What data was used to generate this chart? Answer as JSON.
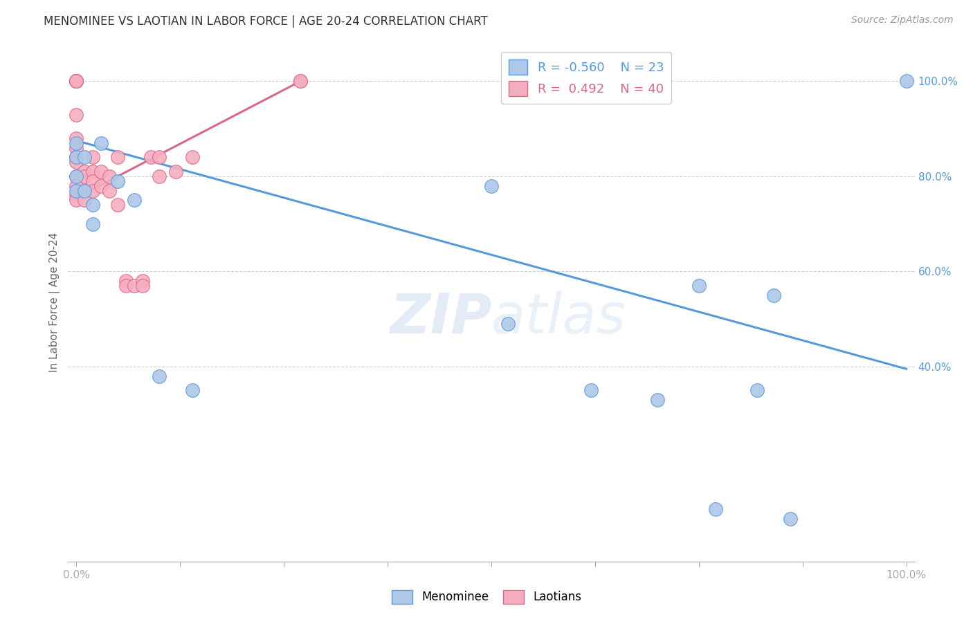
{
  "title": "MENOMINEE VS LAOTIAN IN LABOR FORCE | AGE 20-24 CORRELATION CHART",
  "source": "Source: ZipAtlas.com",
  "ylabel": "In Labor Force | Age 20-24",
  "menominee_R": -0.56,
  "menominee_N": 23,
  "laotian_R": 0.492,
  "laotian_N": 40,
  "menominee_color": "#adc8e8",
  "laotian_color": "#f5aec0",
  "menominee_line_color": "#5599dd",
  "laotian_line_color": "#dd6688",
  "menominee_x": [
    0.0,
    0.0,
    0.0,
    0.0,
    0.01,
    0.01,
    0.02,
    0.02,
    0.03,
    0.05,
    0.07,
    0.1,
    0.14,
    0.5,
    0.52,
    0.62,
    0.7,
    0.75,
    0.77,
    0.82,
    0.84,
    0.86,
    1.0
  ],
  "menominee_y": [
    0.87,
    0.84,
    0.8,
    0.77,
    0.84,
    0.77,
    0.74,
    0.7,
    0.87,
    0.79,
    0.75,
    0.38,
    0.35,
    0.78,
    0.49,
    0.35,
    0.33,
    0.57,
    0.1,
    0.35,
    0.55,
    0.08,
    1.0
  ],
  "laotian_x": [
    0.0,
    0.0,
    0.0,
    0.0,
    0.0,
    0.0,
    0.0,
    0.0,
    0.0,
    0.0,
    0.0,
    0.0,
    0.0,
    0.0,
    0.01,
    0.01,
    0.01,
    0.01,
    0.02,
    0.02,
    0.02,
    0.02,
    0.03,
    0.03,
    0.04,
    0.04,
    0.05,
    0.05,
    0.06,
    0.06,
    0.07,
    0.08,
    0.08,
    0.09,
    0.1,
    0.1,
    0.12,
    0.14,
    0.27,
    0.27
  ],
  "laotian_y": [
    1.0,
    1.0,
    1.0,
    1.0,
    1.0,
    0.93,
    0.88,
    0.86,
    0.84,
    0.83,
    0.8,
    0.78,
    0.76,
    0.75,
    0.81,
    0.8,
    0.77,
    0.75,
    0.84,
    0.81,
    0.79,
    0.77,
    0.81,
    0.78,
    0.8,
    0.77,
    0.84,
    0.74,
    0.58,
    0.57,
    0.57,
    0.58,
    0.57,
    0.84,
    0.84,
    0.8,
    0.81,
    0.84,
    1.0,
    1.0
  ],
  "menominee_trend_x": [
    0.0,
    1.0
  ],
  "menominee_trend_y": [
    0.875,
    0.395
  ],
  "laotian_trend_x": [
    0.0,
    0.27
  ],
  "laotian_trend_y": [
    0.755,
    1.0
  ],
  "watermark_zip": "ZIP",
  "watermark_atlas": "atlas",
  "background_color": "#ffffff",
  "grid_color": "#d0d0d0",
  "right_label_color": "#5599dd",
  "xlim": [
    -0.01,
    1.01
  ],
  "ylim": [
    -0.01,
    1.08
  ],
  "yticks": [
    0.4,
    0.6,
    0.8,
    1.0
  ],
  "ytick_labels": [
    "40.0%",
    "60.0%",
    "80.0%",
    "100.0%"
  ],
  "xtick_positions": [
    0.0,
    0.125,
    0.25,
    0.375,
    0.5,
    0.625,
    0.75,
    0.875,
    1.0
  ],
  "title_fontsize": 12,
  "source_fontsize": 10,
  "axis_label_fontsize": 11,
  "tick_fontsize": 11
}
